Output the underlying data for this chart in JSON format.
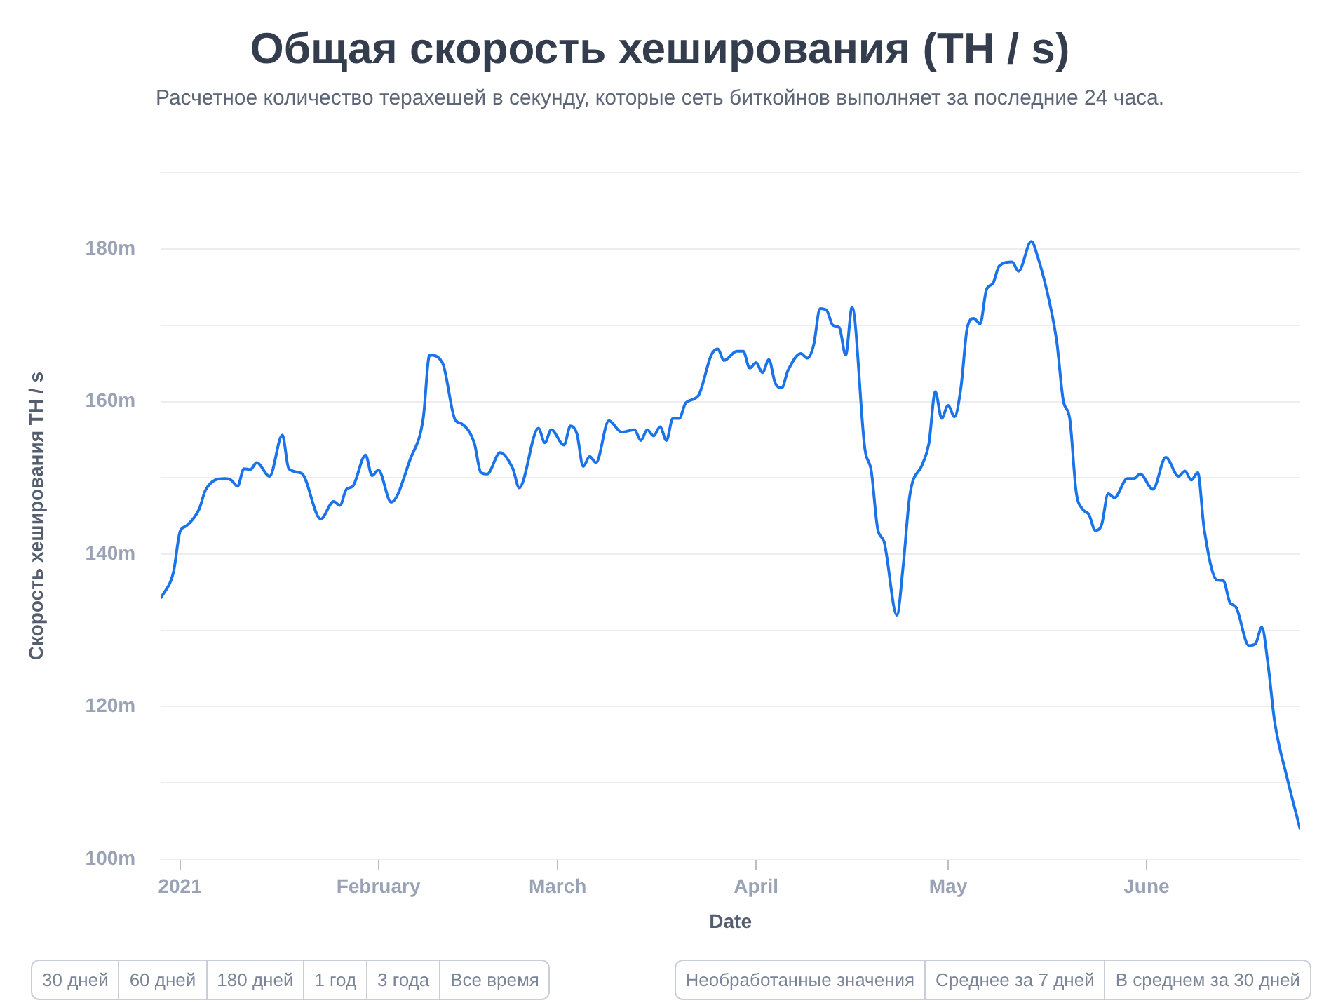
{
  "chart_data": {
    "type": "line",
    "title": "Общая скорость хеширования (TH / s)",
    "subtitle": "Расчетное количество терахешей в секунду, которые сеть биткойнов выполняет за последние 24 часа.",
    "xlabel": "Date",
    "ylabel": "Скорость хеширования TH / s",
    "x": [
      "2020-12-29",
      "2020-12-31",
      "2021-01-01",
      "2021-01-02",
      "2021-01-04",
      "2021-01-05",
      "2021-01-08",
      "2021-01-09",
      "2021-01-10",
      "2021-01-11",
      "2021-01-12",
      "2021-01-13",
      "2021-01-15",
      "2021-01-17",
      "2021-01-18",
      "2021-01-20",
      "2021-01-23",
      "2021-01-25",
      "2021-01-26",
      "2021-01-27",
      "2021-01-28",
      "2021-01-30",
      "2021-01-31",
      "2021-02-01",
      "2021-02-03",
      "2021-02-06",
      "2021-02-08",
      "2021-02-09",
      "2021-02-11",
      "2021-02-13",
      "2021-02-14",
      "2021-02-16",
      "2021-02-17",
      "2021-02-18",
      "2021-02-20",
      "2021-02-22",
      "2021-02-23",
      "2021-02-26",
      "2021-02-27",
      "2021-02-28",
      "2021-03-02",
      "2021-03-03",
      "2021-03-04",
      "2021-03-05",
      "2021-03-06",
      "2021-03-07",
      "2021-03-09",
      "2021-03-11",
      "2021-03-13",
      "2021-03-14",
      "2021-03-15",
      "2021-03-16",
      "2021-03-17",
      "2021-03-18",
      "2021-03-19",
      "2021-03-20",
      "2021-03-21",
      "2021-03-23",
      "2021-03-25",
      "2021-03-26",
      "2021-03-27",
      "2021-03-29",
      "2021-03-30",
      "2021-03-31",
      "2021-04-01",
      "2021-04-02",
      "2021-04-03",
      "2021-04-04",
      "2021-04-05",
      "2021-04-06",
      "2021-04-08",
      "2021-04-09",
      "2021-04-10",
      "2021-04-11",
      "2021-04-12",
      "2021-04-13",
      "2021-04-14",
      "2021-04-15",
      "2021-04-16",
      "2021-04-18",
      "2021-04-19",
      "2021-04-20",
      "2021-04-21",
      "2021-04-23",
      "2021-04-24",
      "2021-04-25",
      "2021-04-27",
      "2021-04-28",
      "2021-04-29",
      "2021-04-30",
      "2021-05-01",
      "2021-05-02",
      "2021-05-03",
      "2021-05-04",
      "2021-05-05",
      "2021-05-06",
      "2021-05-07",
      "2021-05-08",
      "2021-05-09",
      "2021-05-11",
      "2021-05-12",
      "2021-05-14",
      "2021-05-15",
      "2021-05-17",
      "2021-05-18",
      "2021-05-19",
      "2021-05-20",
      "2021-05-21",
      "2021-05-22",
      "2021-05-23",
      "2021-05-24",
      "2021-05-25",
      "2021-05-26",
      "2021-05-27",
      "2021-05-29",
      "2021-05-30",
      "2021-05-31",
      "2021-06-02",
      "2021-06-04",
      "2021-06-06",
      "2021-06-07",
      "2021-06-08",
      "2021-06-09",
      "2021-06-10",
      "2021-06-12",
      "2021-06-13",
      "2021-06-14",
      "2021-06-15",
      "2021-06-17",
      "2021-06-18",
      "2021-06-19",
      "2021-06-20",
      "2021-06-21",
      "2021-06-23",
      "2021-06-25"
    ],
    "series": [
      {
        "color": "#1a73e8",
        "values": [
          134.2,
          137.7,
          142.9,
          143.7,
          145.9,
          148.4,
          149.9,
          149.7,
          148.9,
          151.2,
          151.1,
          152.0,
          150.2,
          155.6,
          151.2,
          150.6,
          144.6,
          146.9,
          146.4,
          148.5,
          148.9,
          153.0,
          150.3,
          151.0,
          146.8,
          152.5,
          157.8,
          166.1,
          165.1,
          157.6,
          157.1,
          154.5,
          150.7,
          150.5,
          153.3,
          151.2,
          148.7,
          156.5,
          154.6,
          156.3,
          154.3,
          156.8,
          155.8,
          151.5,
          152.8,
          152.0,
          157.5,
          156.0,
          156.3,
          154.9,
          156.3,
          155.5,
          156.7,
          154.9,
          157.8,
          157.8,
          159.8,
          160.8,
          166.1,
          166.9,
          165.4,
          166.6,
          166.6,
          164.4,
          165.1,
          163.8,
          165.5,
          162.4,
          161.8,
          164.1,
          166.3,
          165.7,
          167.4,
          172.2,
          172.0,
          170.0,
          169.7,
          166.1,
          172.4,
          153.8,
          150.9,
          143.3,
          141.6,
          132.0,
          138.6,
          147.6,
          151.8,
          154.5,
          161.3,
          157.8,
          159.5,
          158.0,
          161.8,
          169.7,
          170.9,
          170.2,
          174.7,
          175.5,
          177.8,
          178.3,
          177.1,
          181.0,
          179.0,
          172.4,
          167.7,
          160.1,
          157.8,
          148.2,
          145.9,
          145.2,
          143.1,
          143.9,
          147.9,
          147.4,
          149.9,
          149.9,
          150.5,
          148.5,
          152.7,
          150.2,
          150.9,
          149.7,
          150.7,
          143.3,
          136.6,
          136.5,
          133.7,
          133.0,
          128.0,
          128.2,
          130.4,
          125.4,
          118.1,
          110.5,
          103.9
        ]
      }
    ],
    "xlim": [
      "2020-12-29",
      "2021-06-25"
    ],
    "xticks": [
      {
        "value": "2021-01-01",
        "label": "2021"
      },
      {
        "value": "2021-02-01",
        "label": "February"
      },
      {
        "value": "2021-03-01",
        "label": "March"
      },
      {
        "value": "2021-04-01",
        "label": "April"
      },
      {
        "value": "2021-05-01",
        "label": "May"
      },
      {
        "value": "2021-06-01",
        "label": "June"
      }
    ],
    "ylim": [
      100,
      190
    ],
    "yticks": [
      {
        "value": 100,
        "label": "100m"
      },
      {
        "value": 110,
        "label": null
      },
      {
        "value": 120,
        "label": "120m"
      },
      {
        "value": 130,
        "label": null
      },
      {
        "value": 140,
        "label": "140m"
      },
      {
        "value": 150,
        "label": null
      },
      {
        "value": 160,
        "label": "160m"
      },
      {
        "value": 170,
        "label": null
      },
      {
        "value": 180,
        "label": "180m"
      },
      {
        "value": 190,
        "label": null
      }
    ],
    "grid": "y",
    "legend": false,
    "marker": "none",
    "line_style": "solid",
    "annotations": [
      "30 дней",
      "60 дней",
      "180 дней",
      "1 год",
      "3 года",
      "Все время",
      "Необработанные значения",
      "Среднее за 7 дней",
      "В среднем за 30 дней"
    ]
  }
}
